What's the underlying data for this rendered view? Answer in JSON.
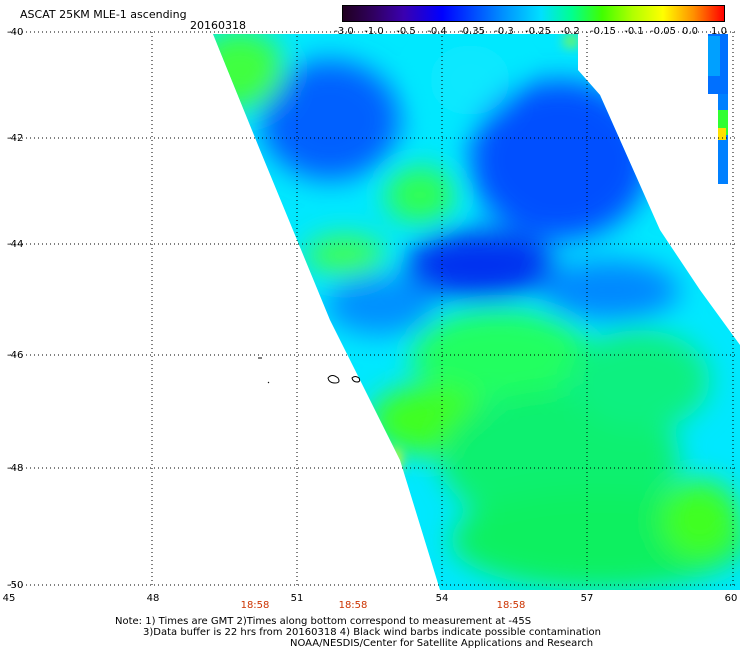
{
  "header": {
    "title": "ASCAT 25KM MLE-1 ascending",
    "date": "20160318"
  },
  "colorbar": {
    "labels": [
      "-3.0",
      "-1.0",
      "-0.5",
      "-0.4",
      "-0.35",
      "-0.3",
      "-0.25",
      "-0.2",
      "-0.15",
      "-0.1",
      "-0.05",
      "0.0",
      "1.0"
    ]
  },
  "axes": {
    "y_labels": [
      "-40",
      "-42",
      "-44",
      "-46",
      "-48",
      "-50"
    ],
    "x_labels": [
      "45",
      "48",
      "51",
      "54",
      "57",
      "60"
    ]
  },
  "times": [
    "18:58",
    "18:58",
    "18:58"
  ],
  "notes": {
    "line1": "Note: 1) Times are GMT 2)Times along bottom correspond to measurement at -45S",
    "line2": "3)Data buffer is 22 hrs from 20160318 4) Black wind barbs indicate possible contamination",
    "line3": "NOAA/NESDIS/Center for Satellite Applications and Research"
  },
  "colors": {
    "time_label": "#cc3300",
    "swath_base": "#00e8ff",
    "low_region": "#0040ff",
    "high_region": "#40ff00"
  }
}
